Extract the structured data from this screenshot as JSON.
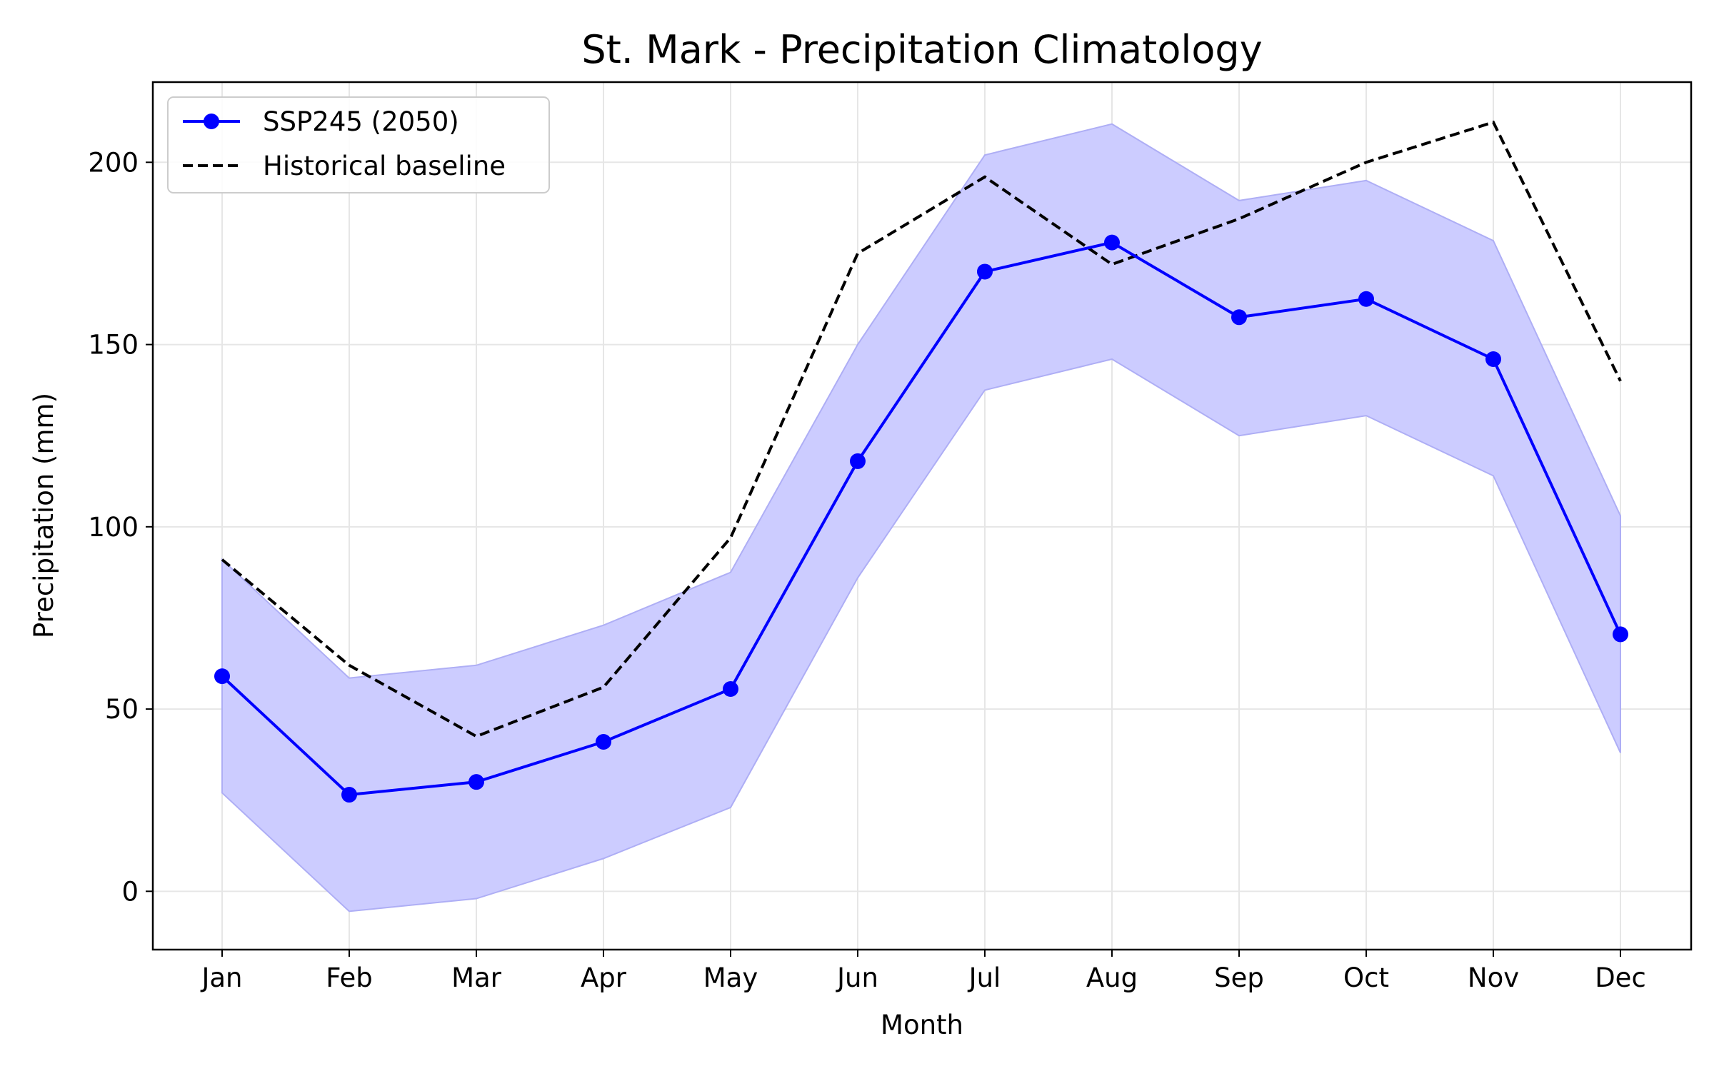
{
  "colors": {
    "projection": "#0000ff",
    "band_fill": "#ccccff",
    "band_edge": "#aeaef5",
    "baseline": "#000000",
    "grid": "#e6e6e6"
  },
  "legend": {
    "placement": "top-left",
    "entries": [
      "SSP245 (2050)",
      "Historical baseline"
    ]
  },
  "chart_data": {
    "type": "line",
    "title": "St. Mark - Precipitation Climatology",
    "xlabel": "Month",
    "ylabel": "Precipitation (mm)",
    "categories": [
      "Jan",
      "Feb",
      "Mar",
      "Apr",
      "May",
      "Jun",
      "Jul",
      "Aug",
      "Sep",
      "Oct",
      "Nov",
      "Dec"
    ],
    "ylim": [
      -16,
      222
    ],
    "yticks": [
      0,
      50,
      100,
      150,
      200
    ],
    "grid": true,
    "series": [
      {
        "name": "SSP245 (2050)",
        "style": "solid-with-markers",
        "values": [
          59,
          26.5,
          30,
          41,
          55.5,
          118,
          170,
          178,
          157.5,
          162.5,
          146,
          70.5
        ]
      },
      {
        "name": "Historical baseline",
        "style": "dashed",
        "values": [
          91,
          62,
          42.5,
          56,
          97,
          175,
          196,
          172,
          184.5,
          200,
          211,
          140
        ]
      }
    ],
    "band": {
      "upper": [
        91,
        58.5,
        62,
        73,
        87.5,
        150,
        202,
        210.5,
        189.5,
        195,
        178.5,
        103
      ],
      "lower": [
        27,
        -5.5,
        -2,
        9,
        23,
        86,
        137.5,
        146,
        125,
        130.5,
        114,
        38
      ]
    }
  }
}
